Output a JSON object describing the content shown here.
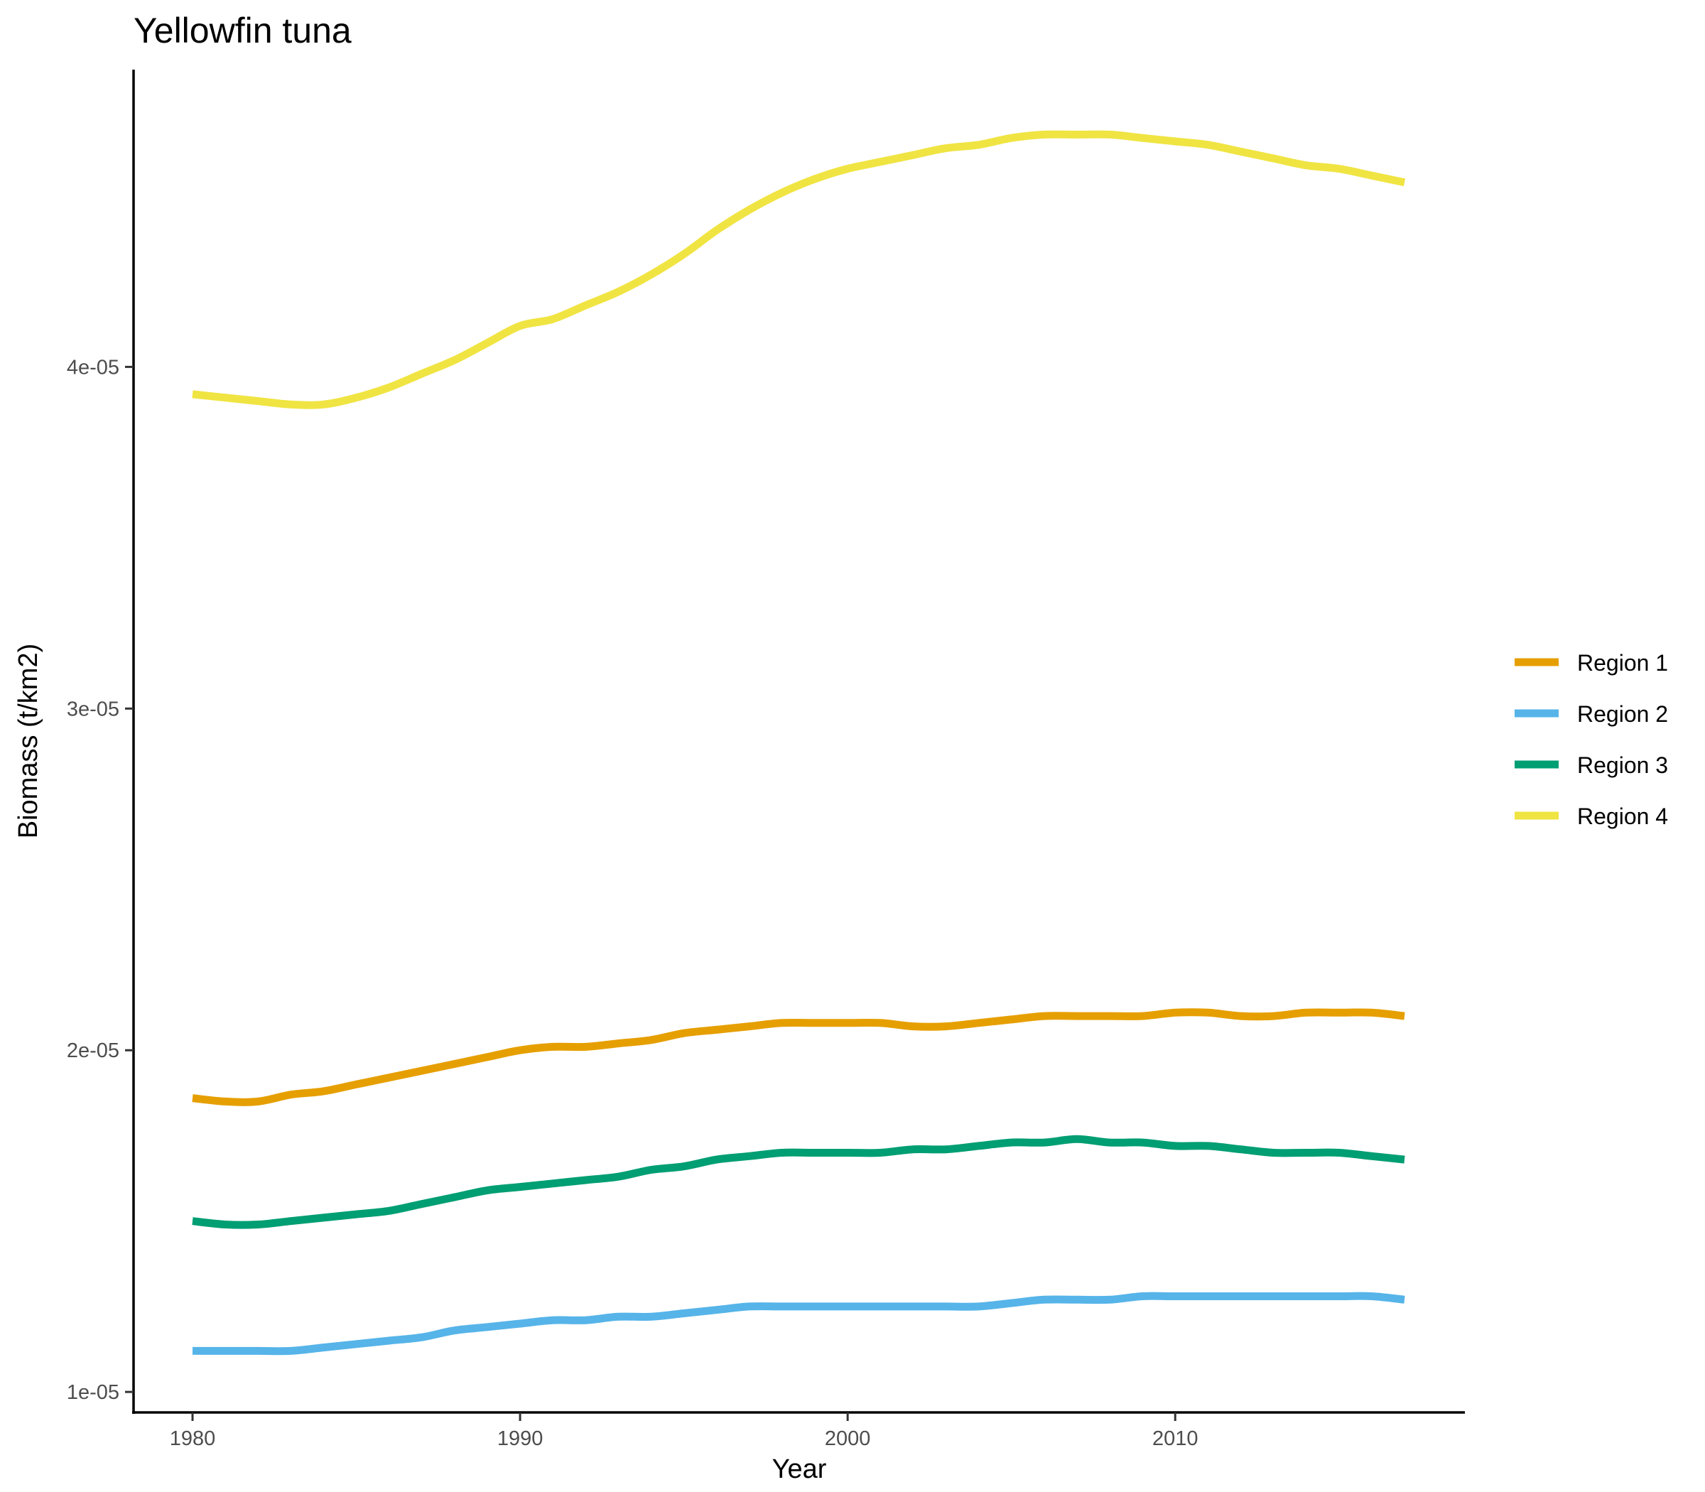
{
  "chart_data": {
    "type": "line",
    "title": "Yellowfin tuna",
    "xlabel": "Year",
    "ylabel": "Biomass (t/km2)",
    "xlim": [
      1978.2,
      2018.8
    ],
    "ylim": [
      9.4e-06,
      4.87e-05
    ],
    "x_ticks": [
      1980,
      1990,
      2000,
      2010
    ],
    "x_tick_labels": [
      "1980",
      "1990",
      "2000",
      "2010"
    ],
    "y_ticks": [
      1e-05,
      2e-05,
      3e-05,
      4e-05
    ],
    "y_tick_labels": [
      "1e-05",
      "2e-05",
      "3e-05",
      "4e-05"
    ],
    "grid": false,
    "legend_position": "right",
    "x": [
      1980,
      1981,
      1982,
      1983,
      1984,
      1985,
      1986,
      1987,
      1988,
      1989,
      1990,
      1991,
      1992,
      1993,
      1994,
      1995,
      1996,
      1997,
      1998,
      1999,
      2000,
      2001,
      2002,
      2003,
      2004,
      2005,
      2006,
      2007,
      2008,
      2009,
      2010,
      2011,
      2012,
      2013,
      2014,
      2015,
      2016,
      2017
    ],
    "series": [
      {
        "name": "Region 1",
        "color": "#E69F00",
        "values": [
          1.86e-05,
          1.85e-05,
          1.85e-05,
          1.87e-05,
          1.88e-05,
          1.9e-05,
          1.92e-05,
          1.94e-05,
          1.96e-05,
          1.98e-05,
          2e-05,
          2.01e-05,
          2.01e-05,
          2.02e-05,
          2.03e-05,
          2.05e-05,
          2.06e-05,
          2.07e-05,
          2.08e-05,
          2.08e-05,
          2.08e-05,
          2.08e-05,
          2.07e-05,
          2.07e-05,
          2.08e-05,
          2.09e-05,
          2.1e-05,
          2.1e-05,
          2.1e-05,
          2.1e-05,
          2.11e-05,
          2.11e-05,
          2.1e-05,
          2.1e-05,
          2.11e-05,
          2.11e-05,
          2.11e-05,
          2.1e-05
        ]
      },
      {
        "name": "Region 2",
        "color": "#56B4E9",
        "values": [
          1.12e-05,
          1.12e-05,
          1.12e-05,
          1.12e-05,
          1.13e-05,
          1.14e-05,
          1.15e-05,
          1.16e-05,
          1.18e-05,
          1.19e-05,
          1.2e-05,
          1.21e-05,
          1.21e-05,
          1.22e-05,
          1.22e-05,
          1.23e-05,
          1.24e-05,
          1.25e-05,
          1.25e-05,
          1.25e-05,
          1.25e-05,
          1.25e-05,
          1.25e-05,
          1.25e-05,
          1.25e-05,
          1.26e-05,
          1.27e-05,
          1.27e-05,
          1.27e-05,
          1.28e-05,
          1.28e-05,
          1.28e-05,
          1.28e-05,
          1.28e-05,
          1.28e-05,
          1.28e-05,
          1.28e-05,
          1.27e-05
        ]
      },
      {
        "name": "Region 3",
        "color": "#009E73",
        "values": [
          1.5e-05,
          1.49e-05,
          1.49e-05,
          1.5e-05,
          1.51e-05,
          1.52e-05,
          1.53e-05,
          1.55e-05,
          1.57e-05,
          1.59e-05,
          1.6e-05,
          1.61e-05,
          1.62e-05,
          1.63e-05,
          1.65e-05,
          1.66e-05,
          1.68e-05,
          1.69e-05,
          1.7e-05,
          1.7e-05,
          1.7e-05,
          1.7e-05,
          1.71e-05,
          1.71e-05,
          1.72e-05,
          1.73e-05,
          1.73e-05,
          1.74e-05,
          1.73e-05,
          1.73e-05,
          1.72e-05,
          1.72e-05,
          1.71e-05,
          1.7e-05,
          1.7e-05,
          1.7e-05,
          1.69e-05,
          1.68e-05
        ]
      },
      {
        "name": "Region 4",
        "color": "#F0E442",
        "values": [
          3.92e-05,
          3.91e-05,
          3.9e-05,
          3.89e-05,
          3.89e-05,
          3.91e-05,
          3.94e-05,
          3.98e-05,
          4.02e-05,
          4.07e-05,
          4.12e-05,
          4.14e-05,
          4.18e-05,
          4.22e-05,
          4.27e-05,
          4.33e-05,
          4.4e-05,
          4.46e-05,
          4.51e-05,
          4.55e-05,
          4.58e-05,
          4.6e-05,
          4.62e-05,
          4.64e-05,
          4.65e-05,
          4.67e-05,
          4.68e-05,
          4.68e-05,
          4.68e-05,
          4.67e-05,
          4.66e-05,
          4.65e-05,
          4.63e-05,
          4.61e-05,
          4.59e-05,
          4.58e-05,
          4.56e-05,
          4.54e-05
        ]
      }
    ]
  }
}
